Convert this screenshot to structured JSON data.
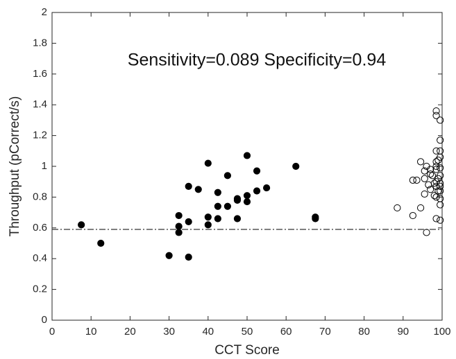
{
  "chart_data": {
    "type": "scatter",
    "xlabel": "CCT Score",
    "ylabel": "Throughput (pCorrect/s)",
    "annotation": "Sensitivity=0.089  Specificity=0.94",
    "xlim": [
      0,
      100
    ],
    "ylim": [
      0,
      2
    ],
    "xticks": [
      0,
      10,
      20,
      30,
      40,
      50,
      60,
      70,
      80,
      90,
      100
    ],
    "yticks": [
      0,
      0.2,
      0.4,
      0.6,
      0.8,
      1,
      1.2,
      1.4,
      1.6,
      1.8,
      2
    ],
    "threshold": 0.59,
    "series": [
      {
        "color": "#000000",
        "filled": true,
        "x": [
          7.5,
          12.5,
          30,
          32.5,
          32.5,
          32.5,
          35,
          35,
          35,
          37.5,
          40,
          40,
          40,
          42.5,
          42.5,
          42.5,
          45,
          45,
          47.5,
          47.5,
          47.5,
          50,
          50,
          50,
          52.5,
          52.5,
          55,
          62.5,
          67.5,
          67.5
        ],
        "values": [
          0.62,
          0.5,
          0.42,
          0.68,
          0.61,
          0.57,
          0.87,
          0.64,
          0.41,
          0.85,
          1.02,
          0.67,
          0.62,
          0.83,
          0.74,
          0.66,
          0.94,
          0.74,
          0.79,
          0.78,
          0.66,
          1.07,
          0.81,
          0.77,
          0.97,
          0.84,
          0.86,
          1.0,
          0.67,
          0.66
        ]
      },
      {
        "color": "#000000",
        "filled": false,
        "x": [
          88.5,
          92.5,
          92.5,
          93.5,
          94.5,
          94.5,
          95.5,
          95.5,
          95.5,
          96,
          96,
          96.5,
          97,
          97,
          97,
          97.5,
          98,
          98,
          98.5,
          98.5,
          98.5,
          98.5,
          98.5,
          98.5,
          98.5,
          98.5,
          98.5,
          98.5,
          99,
          99,
          99,
          99.5,
          99.5,
          99.5,
          99.5,
          99.5,
          99.5,
          99.5,
          99.5,
          99.5,
          99.5,
          99.5,
          99.5
        ],
        "values": [
          0.73,
          0.68,
          0.91,
          0.91,
          1.03,
          0.73,
          0.97,
          0.92,
          0.82,
          1.0,
          0.57,
          0.88,
          0.98,
          0.95,
          0.85,
          0.94,
          0.89,
          0.81,
          1.36,
          1.33,
          1.1,
          1.03,
          1.0,
          0.98,
          0.9,
          0.87,
          0.8,
          0.66,
          1.04,
          0.92,
          0.84,
          1.3,
          1.17,
          1.1,
          1.06,
          0.99,
          0.94,
          0.89,
          0.87,
          0.84,
          0.79,
          0.75,
          0.65
        ]
      }
    ]
  }
}
